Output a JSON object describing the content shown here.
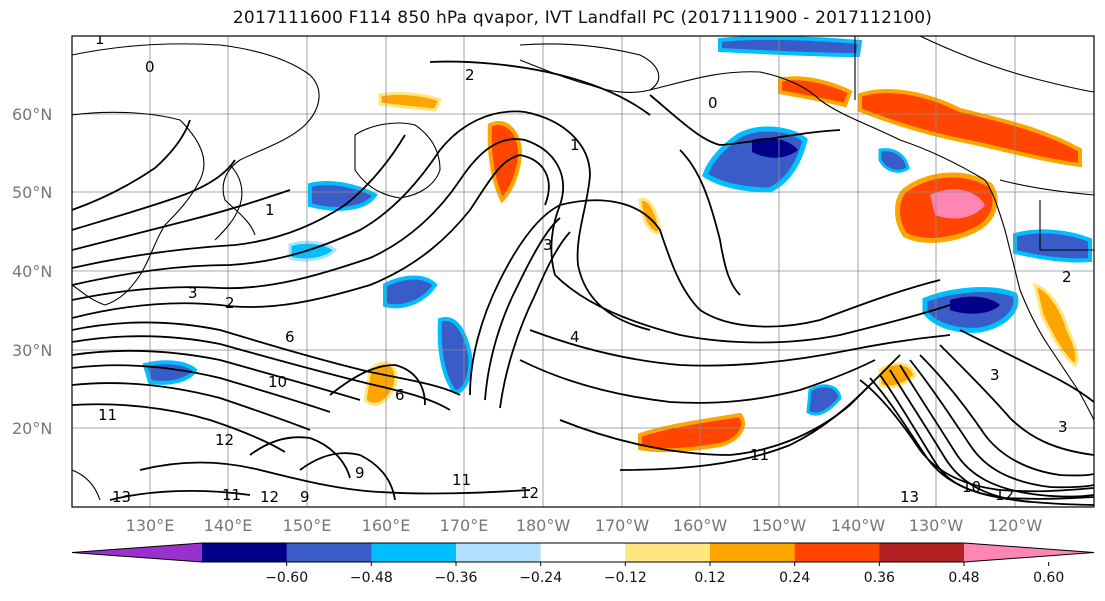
{
  "title": "2017111600 F114 850 hPa qvapor, IVT Landfall PC (2017111900 - 2017112100)",
  "lat_labels": [
    "60°N",
    "50°N",
    "40°N",
    "30°N",
    "20°N"
  ],
  "lon_labels": [
    "130°E",
    "140°E",
    "150°E",
    "160°E",
    "170°E",
    "180°W",
    "170°W",
    "160°W",
    "150°W",
    "140°W",
    "130°W",
    "120°W"
  ],
  "colorbar": {
    "ticks": [
      "−0.60",
      "−0.48",
      "−0.36",
      "−0.24",
      "−0.12",
      "0.12",
      "0.24",
      "0.36",
      "0.48",
      "0.60"
    ],
    "colors": [
      "#9932cc",
      "#00008b",
      "#3a5cc8",
      "#00bfff",
      "#b0e0ff",
      "#ffffff",
      "#ffe680",
      "#ffa500",
      "#ff4500",
      "#b22222",
      "#ff85b3"
    ]
  },
  "contour_labels": [
    "1",
    "0",
    "2",
    "0",
    "1",
    "3",
    "1",
    "3",
    "2",
    "6",
    "4",
    "10",
    "11",
    "6",
    "12",
    "9",
    "11",
    "12",
    "13",
    "12",
    "10",
    "11",
    "13",
    "3",
    "2",
    "12",
    "9",
    "11",
    "3"
  ]
}
